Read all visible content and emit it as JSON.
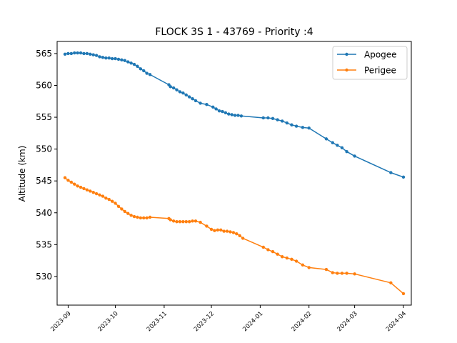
{
  "chart_data": {
    "type": "line",
    "title": "FLOCK 3S 1 - 43769 - Priority :4",
    "xlabel": "",
    "ylabel": "Altitude (km)",
    "xlim": [
      "2023-08-25",
      "2024-04-06"
    ],
    "ylim": [
      525.5,
      566.9
    ],
    "yticks": [
      530,
      535,
      540,
      545,
      550,
      555,
      560,
      565
    ],
    "xticks": [
      "2023-09-01",
      "2023-10-01",
      "2023-11-01",
      "2023-12-01",
      "2024-01-01",
      "2024-02-01",
      "2024-03-01",
      "2024-04-01"
    ],
    "xtick_labels": [
      "2023-09",
      "2023-10",
      "2023-11",
      "2023-12",
      "2024-01",
      "2024-02",
      "2024-03",
      "2024-04"
    ],
    "grid": false,
    "legend_position": "upper right",
    "series": [
      {
        "name": "Apogee",
        "color": "#1f77b4",
        "marker": "circle",
        "points": [
          [
            "2023-08-30",
            564.9
          ],
          [
            "2023-09-01",
            565.0
          ],
          [
            "2023-09-03",
            565.0
          ],
          [
            "2023-09-05",
            565.1
          ],
          [
            "2023-09-07",
            565.1
          ],
          [
            "2023-09-09",
            565.1
          ],
          [
            "2023-09-11",
            565.0
          ],
          [
            "2023-09-13",
            565.0
          ],
          [
            "2023-09-15",
            564.9
          ],
          [
            "2023-09-17",
            564.8
          ],
          [
            "2023-09-19",
            564.7
          ],
          [
            "2023-09-21",
            564.5
          ],
          [
            "2023-09-23",
            564.4
          ],
          [
            "2023-09-25",
            564.3
          ],
          [
            "2023-09-27",
            564.3
          ],
          [
            "2023-09-29",
            564.2
          ],
          [
            "2023-10-01",
            564.2
          ],
          [
            "2023-10-03",
            564.1
          ],
          [
            "2023-10-05",
            564.0
          ],
          [
            "2023-10-07",
            563.9
          ],
          [
            "2023-10-09",
            563.7
          ],
          [
            "2023-10-11",
            563.5
          ],
          [
            "2023-10-13",
            563.3
          ],
          [
            "2023-10-15",
            563.0
          ],
          [
            "2023-10-17",
            562.6
          ],
          [
            "2023-10-19",
            562.3
          ],
          [
            "2023-10-21",
            561.9
          ],
          [
            "2023-10-23",
            561.7
          ],
          [
            "2023-11-04",
            560.1
          ],
          [
            "2023-11-05",
            559.8
          ],
          [
            "2023-11-07",
            559.6
          ],
          [
            "2023-11-09",
            559.3
          ],
          [
            "2023-11-11",
            559.0
          ],
          [
            "2023-11-13",
            558.8
          ],
          [
            "2023-11-15",
            558.5
          ],
          [
            "2023-11-17",
            558.2
          ],
          [
            "2023-11-19",
            557.9
          ],
          [
            "2023-11-21",
            557.6
          ],
          [
            "2023-11-24",
            557.2
          ],
          [
            "2023-11-28",
            557.0
          ],
          [
            "2023-12-02",
            556.6
          ],
          [
            "2023-12-04",
            556.3
          ],
          [
            "2023-12-06",
            556.0
          ],
          [
            "2023-12-08",
            555.9
          ],
          [
            "2023-12-10",
            555.7
          ],
          [
            "2023-12-12",
            555.5
          ],
          [
            "2023-12-14",
            555.4
          ],
          [
            "2023-12-16",
            555.3
          ],
          [
            "2023-12-18",
            555.3
          ],
          [
            "2023-12-20",
            555.2
          ],
          [
            "2024-01-03",
            554.9
          ],
          [
            "2024-01-06",
            554.9
          ],
          [
            "2024-01-09",
            554.8
          ],
          [
            "2024-01-12",
            554.6
          ],
          [
            "2024-01-15",
            554.4
          ],
          [
            "2024-01-18",
            554.1
          ],
          [
            "2024-01-21",
            553.8
          ],
          [
            "2024-01-24",
            553.6
          ],
          [
            "2024-01-28",
            553.4
          ],
          [
            "2024-02-01",
            553.3
          ],
          [
            "2024-02-12",
            551.6
          ],
          [
            "2024-02-16",
            551.0
          ],
          [
            "2024-02-19",
            550.6
          ],
          [
            "2024-02-22",
            550.2
          ],
          [
            "2024-02-25",
            549.6
          ],
          [
            "2024-03-01",
            548.9
          ],
          [
            "2024-03-24",
            546.3
          ],
          [
            "2024-04-01",
            545.6
          ]
        ]
      },
      {
        "name": "Perigee",
        "color": "#ff7f0e",
        "marker": "circle",
        "points": [
          [
            "2023-08-30",
            545.5
          ],
          [
            "2023-09-01",
            545.1
          ],
          [
            "2023-09-03",
            544.8
          ],
          [
            "2023-09-05",
            544.5
          ],
          [
            "2023-09-07",
            544.2
          ],
          [
            "2023-09-09",
            544.0
          ],
          [
            "2023-09-11",
            543.8
          ],
          [
            "2023-09-13",
            543.6
          ],
          [
            "2023-09-15",
            543.4
          ],
          [
            "2023-09-17",
            543.2
          ],
          [
            "2023-09-19",
            543.0
          ],
          [
            "2023-09-21",
            542.8
          ],
          [
            "2023-09-23",
            542.6
          ],
          [
            "2023-09-25",
            542.3
          ],
          [
            "2023-09-27",
            542.1
          ],
          [
            "2023-09-29",
            541.8
          ],
          [
            "2023-10-01",
            541.5
          ],
          [
            "2023-10-03",
            541.0
          ],
          [
            "2023-10-05",
            540.6
          ],
          [
            "2023-10-07",
            540.2
          ],
          [
            "2023-10-09",
            539.9
          ],
          [
            "2023-10-11",
            539.6
          ],
          [
            "2023-10-13",
            539.4
          ],
          [
            "2023-10-15",
            539.3
          ],
          [
            "2023-10-17",
            539.2
          ],
          [
            "2023-10-19",
            539.2
          ],
          [
            "2023-10-21",
            539.2
          ],
          [
            "2023-10-23",
            539.3
          ],
          [
            "2023-11-04",
            539.1
          ],
          [
            "2023-11-05",
            538.9
          ],
          [
            "2023-11-07",
            538.7
          ],
          [
            "2023-11-09",
            538.6
          ],
          [
            "2023-11-11",
            538.6
          ],
          [
            "2023-11-13",
            538.6
          ],
          [
            "2023-11-15",
            538.6
          ],
          [
            "2023-11-17",
            538.6
          ],
          [
            "2023-11-19",
            538.7
          ],
          [
            "2023-11-21",
            538.7
          ],
          [
            "2023-11-24",
            538.5
          ],
          [
            "2023-11-28",
            537.9
          ],
          [
            "2023-12-01",
            537.4
          ],
          [
            "2023-12-03",
            537.2
          ],
          [
            "2023-12-05",
            537.3
          ],
          [
            "2023-12-07",
            537.3
          ],
          [
            "2023-12-09",
            537.1
          ],
          [
            "2023-12-11",
            537.1
          ],
          [
            "2023-12-13",
            537.0
          ],
          [
            "2023-12-15",
            536.9
          ],
          [
            "2023-12-17",
            536.7
          ],
          [
            "2023-12-19",
            536.4
          ],
          [
            "2023-12-21",
            536.0
          ],
          [
            "2024-01-03",
            534.6
          ],
          [
            "2024-01-06",
            534.2
          ],
          [
            "2024-01-09",
            533.9
          ],
          [
            "2024-01-12",
            533.5
          ],
          [
            "2024-01-15",
            533.1
          ],
          [
            "2024-01-18",
            532.9
          ],
          [
            "2024-01-21",
            532.7
          ],
          [
            "2024-01-24",
            532.4
          ],
          [
            "2024-01-28",
            531.8
          ],
          [
            "2024-02-01",
            531.4
          ],
          [
            "2024-02-12",
            531.1
          ],
          [
            "2024-02-16",
            530.6
          ],
          [
            "2024-02-19",
            530.5
          ],
          [
            "2024-02-22",
            530.5
          ],
          [
            "2024-02-25",
            530.5
          ],
          [
            "2024-03-01",
            530.4
          ],
          [
            "2024-03-24",
            529.0
          ],
          [
            "2024-04-01",
            527.3
          ]
        ]
      }
    ]
  }
}
